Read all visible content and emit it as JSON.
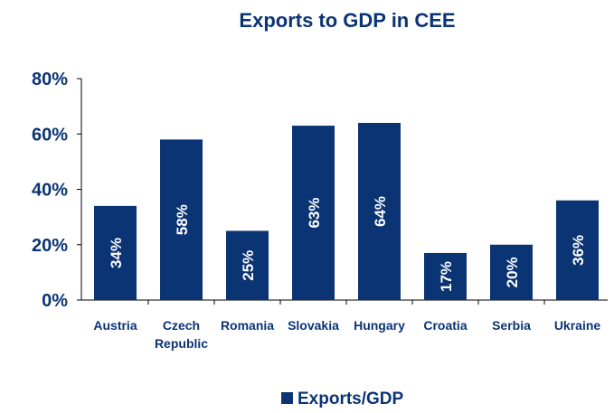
{
  "chart_data": {
    "type": "bar",
    "title": "Exports to GDP in CEE",
    "categories": [
      [
        "Austria"
      ],
      [
        "Czech",
        "Republic"
      ],
      [
        "Romania"
      ],
      [
        "Slovakia"
      ],
      [
        "Hungary"
      ],
      [
        "Croatia"
      ],
      [
        "Serbia"
      ],
      [
        "Ukraine"
      ]
    ],
    "series": [
      {
        "name": "Exports/GDP",
        "values": [
          0.34,
          0.58,
          0.25,
          0.63,
          0.64,
          0.17,
          0.2,
          0.36
        ],
        "labels": [
          "34%",
          "58%",
          "25%",
          "63%",
          "64%",
          "17%",
          "20%",
          "36%"
        ],
        "color": "#0b3474"
      }
    ],
    "yticks": [
      {
        "value": 0,
        "label": "0%"
      },
      {
        "value": 0.2,
        "label": "20%"
      },
      {
        "value": 0.4,
        "label": "40%"
      },
      {
        "value": 0.6,
        "label": "60%"
      },
      {
        "value": 0.8,
        "label": "80%"
      }
    ],
    "ylim": [
      0,
      0.8
    ],
    "xlabel": "",
    "ylabel": "",
    "grid": false,
    "legend": "bottom-center",
    "colors": {
      "bar": "#0b3474",
      "text": "#0b3474",
      "axis": "#000000",
      "bar_label": "#ffffff"
    }
  }
}
